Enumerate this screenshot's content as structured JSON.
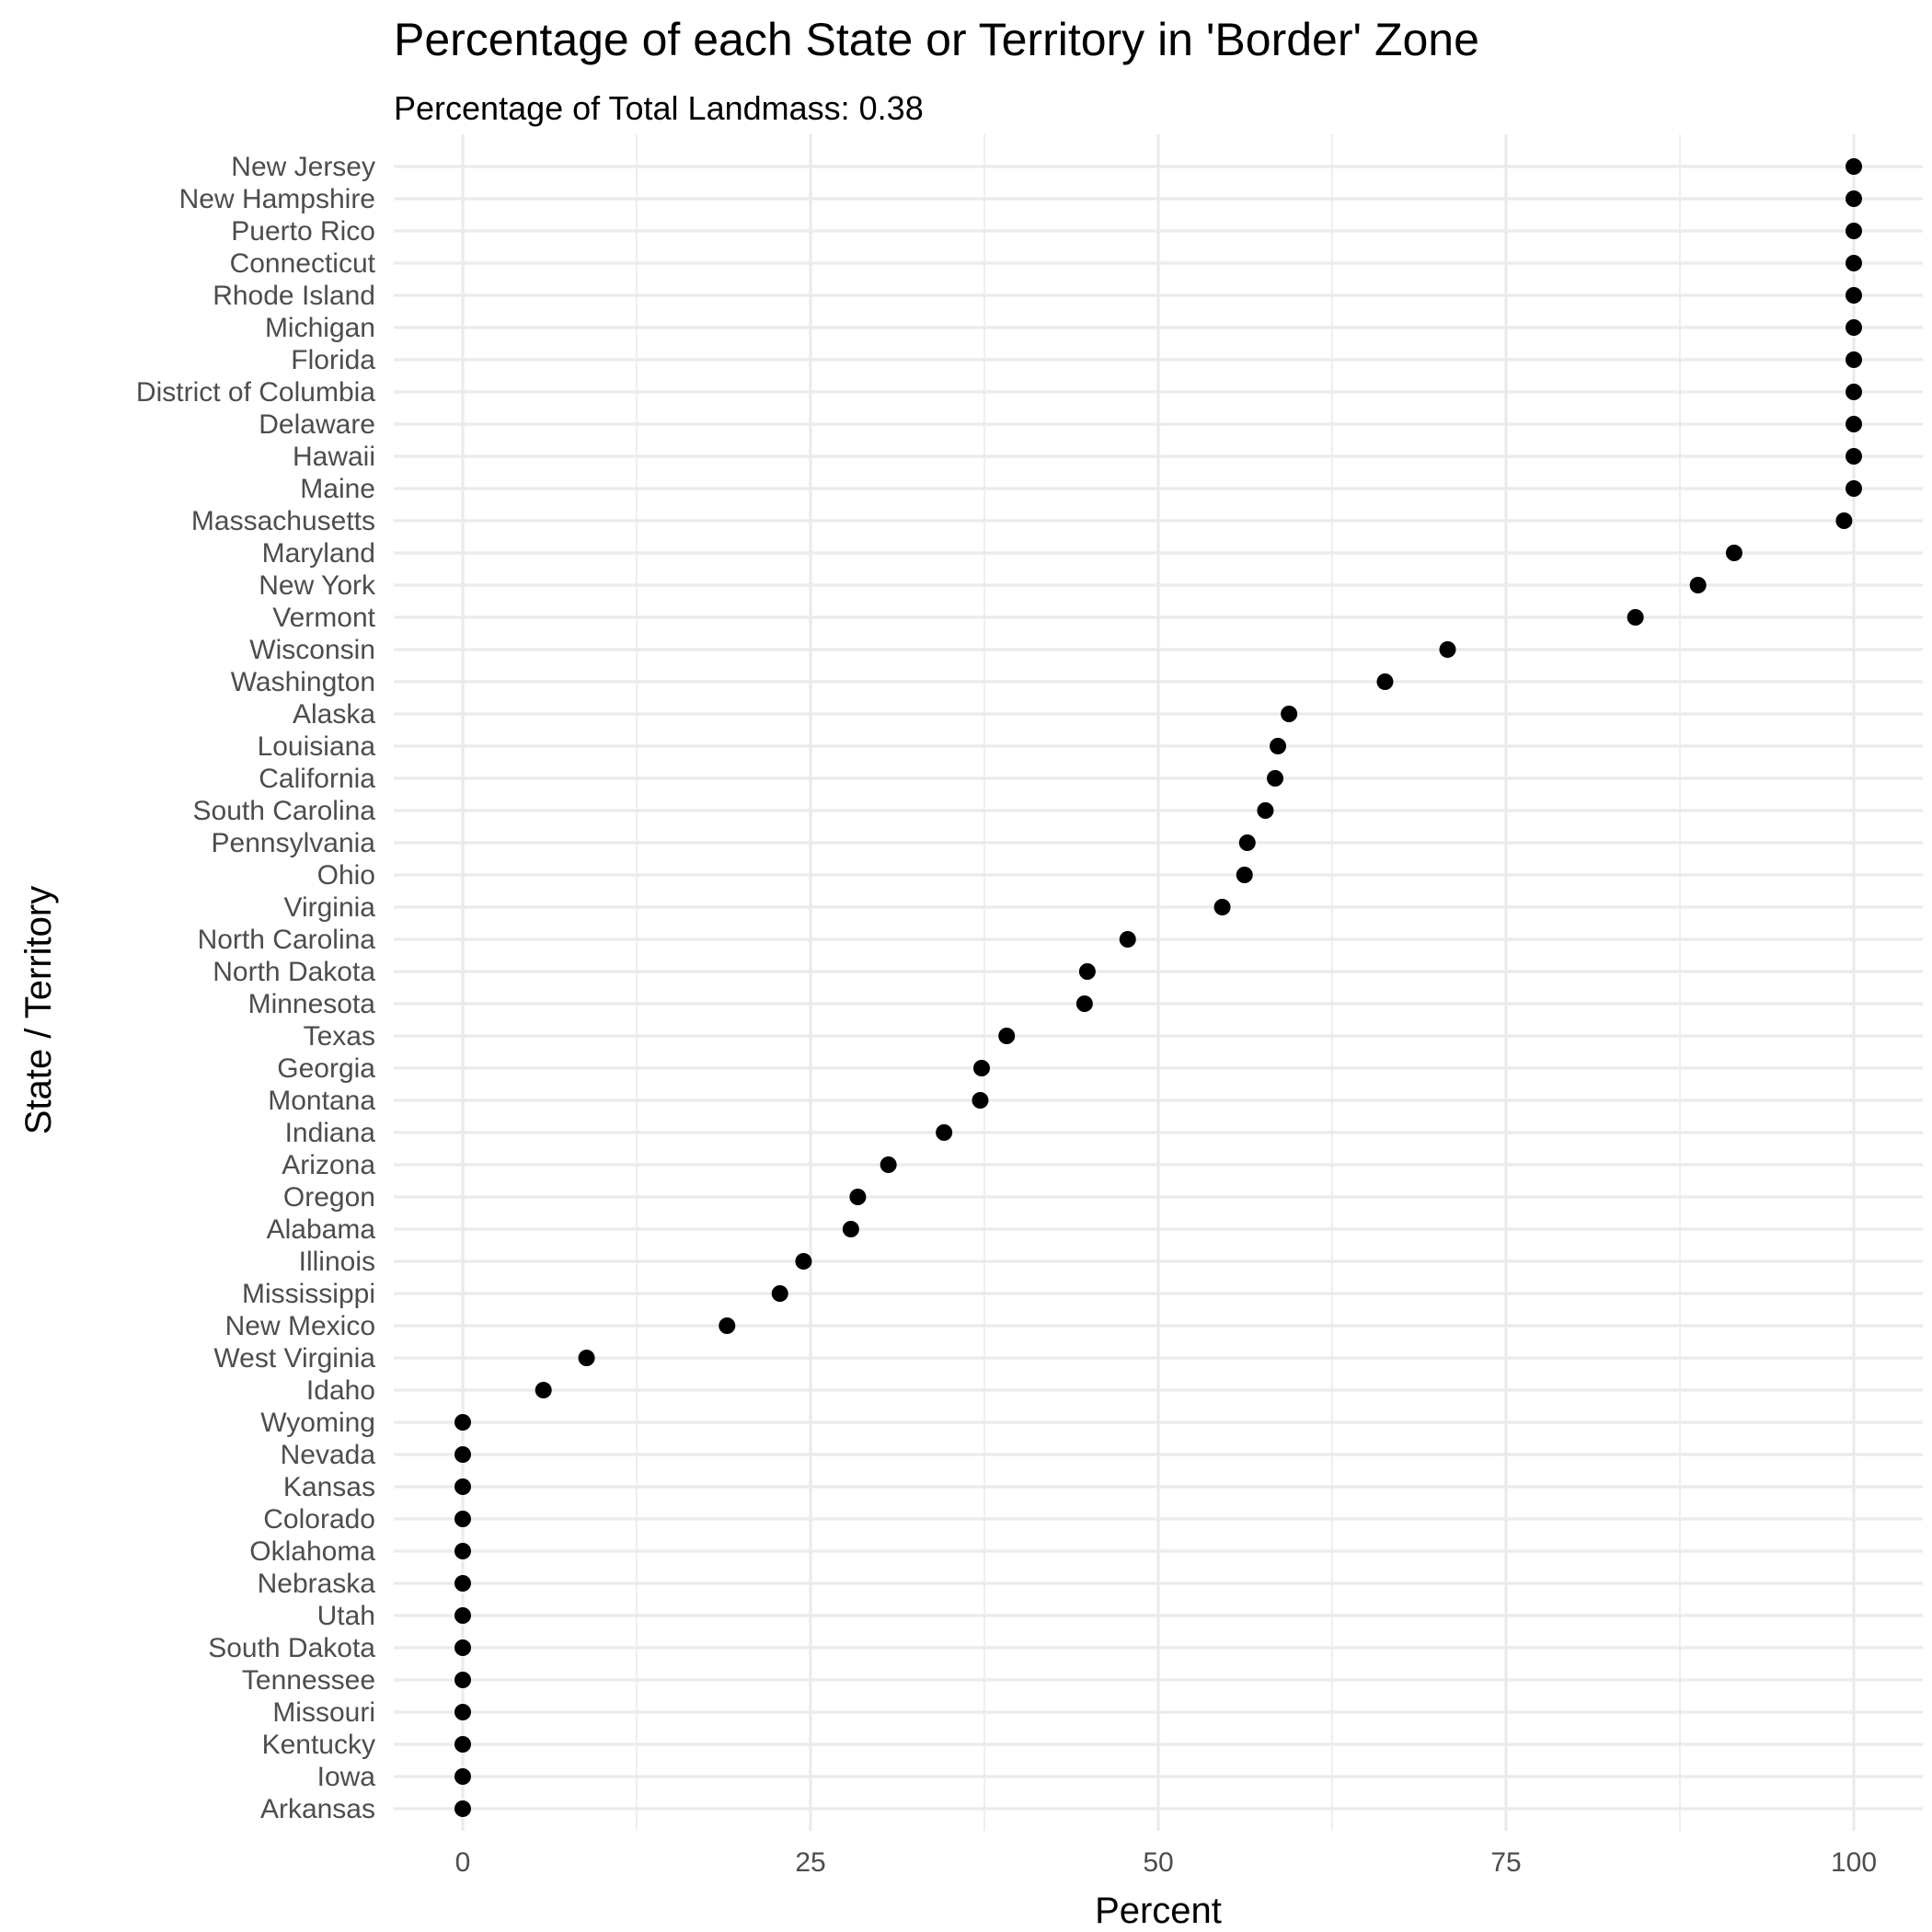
{
  "chart_data": {
    "type": "scatter",
    "title": "Percentage of each State or Territory in 'Border' Zone",
    "subtitle": "Percentage of Total Landmass: 0.38",
    "xlabel": "Percent",
    "ylabel": "State / Territory",
    "xlim": [
      -2.5,
      102.5
    ],
    "x_ticks": [
      0,
      25,
      50,
      75,
      100
    ],
    "x_minor_ticks": [
      12.5,
      37.5,
      62.5,
      87.5
    ],
    "grid": true,
    "legend": "none",
    "point_color": "#000000",
    "categories": [
      "New Jersey",
      "New Hampshire",
      "Puerto Rico",
      "Connecticut",
      "Rhode Island",
      "Michigan",
      "Florida",
      "District of Columbia",
      "Delaware",
      "Hawaii",
      "Maine",
      "Massachusetts",
      "Maryland",
      "New York",
      "Vermont",
      "Wisconsin",
      "Washington",
      "Alaska",
      "Louisiana",
      "California",
      "South Carolina",
      "Pennsylvania",
      "Ohio",
      "Virginia",
      "North Carolina",
      "North Dakota",
      "Minnesota",
      "Texas",
      "Georgia",
      "Montana",
      "Indiana",
      "Arizona",
      "Oregon",
      "Alabama",
      "Illinois",
      "Mississippi",
      "New Mexico",
      "West Virginia",
      "Idaho",
      "Wyoming",
      "Nevada",
      "Kansas",
      "Colorado",
      "Oklahoma",
      "Nebraska",
      "Utah",
      "South Dakota",
      "Tennessee",
      "Missouri",
      "Kentucky",
      "Iowa",
      "Arkansas"
    ],
    "values": [
      100,
      100,
      100,
      100,
      100,
      100,
      100,
      100,
      100,
      100,
      100,
      99.3,
      91.4,
      88.8,
      84.3,
      70.8,
      66.3,
      59.4,
      58.6,
      58.4,
      57.7,
      56.4,
      56.2,
      54.6,
      47.8,
      44.9,
      44.7,
      39.1,
      37.3,
      37.2,
      34.6,
      30.6,
      28.4,
      27.9,
      24.5,
      22.8,
      19.0,
      8.9,
      5.8,
      0,
      0,
      0,
      0,
      0,
      0,
      0,
      0,
      0,
      0,
      0,
      0,
      0
    ]
  }
}
